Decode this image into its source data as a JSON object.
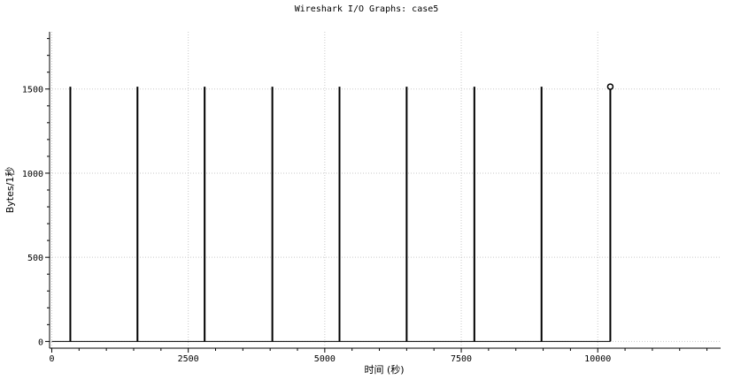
{
  "chart_data": {
    "type": "line",
    "title": "Wireshark I/O Graphs: case5",
    "xlabel": "时间 (秒)",
    "ylabel": "Bytes/1秒",
    "xlim": [
      -40,
      12250
    ],
    "ylim": [
      -40,
      1840
    ],
    "x_ticks": [
      0,
      2500,
      5000,
      7500,
      10000
    ],
    "x_tick_labels": [
      "0",
      "2500",
      "5000",
      "7500",
      "10000"
    ],
    "y_ticks": [
      0,
      500,
      1000,
      1500
    ],
    "y_tick_labels": [
      "0",
      "500",
      "1000",
      "1500"
    ],
    "x_minor_step": 500,
    "y_minor_step": 100,
    "grid": true,
    "series": [
      {
        "color": "#000000",
        "baseline": {
          "x_start": 0,
          "x_end": 10230,
          "y": 0
        },
        "spikes": [
          {
            "x": 340,
            "y": 1514
          },
          {
            "x": 1570,
            "y": 1514
          },
          {
            "x": 2800,
            "y": 1514
          },
          {
            "x": 4040,
            "y": 1514
          },
          {
            "x": 5270,
            "y": 1514
          },
          {
            "x": 6500,
            "y": 1514
          },
          {
            "x": 7740,
            "y": 1514
          },
          {
            "x": 8970,
            "y": 1514
          },
          {
            "x": 10230,
            "y": 1514,
            "marker": "circle"
          }
        ]
      }
    ]
  }
}
